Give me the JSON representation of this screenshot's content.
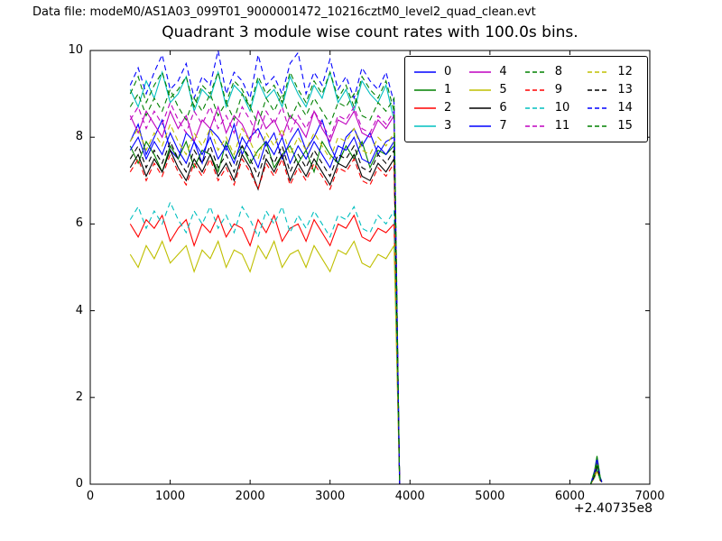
{
  "header": {
    "data_file_label": "Data file: modeM0/AS1A03_099T01_9000001472_10216cztM0_level2_quad_clean.evt"
  },
  "colors": {
    "background": "#ffffff",
    "axes": "#000000",
    "text": "#000000"
  },
  "chart_data": {
    "type": "line",
    "title": "Quadrant 3 module wise count rates with 100.0s bins.",
    "xlabel": "",
    "ylabel": "",
    "xlim": [
      0,
      7000
    ],
    "ylim": [
      0,
      10
    ],
    "x_ticks": [
      0,
      1000,
      2000,
      3000,
      4000,
      5000,
      6000,
      7000
    ],
    "y_ticks": [
      0,
      2,
      4,
      6,
      8,
      10
    ],
    "x_offset_text": "+2.40735e8",
    "grid": false,
    "legend_position": "upper right",
    "legend_columns": 4,
    "bin_seconds": 100.0,
    "x_start": 500,
    "x_step": 100,
    "drop_x": 3870,
    "flat_zero_until": 6260,
    "blip_x": [
      6310,
      6340,
      6380,
      6400
    ],
    "series": [
      {
        "name": "0",
        "color": "#0000ff",
        "dash": false,
        "blip_peak": 0.45,
        "values": [
          7.9,
          8.3,
          7.6,
          8.0,
          8.4,
          7.7,
          7.5,
          8.1,
          7.9,
          7.4,
          8.2,
          8.0,
          7.7,
          8.3,
          7.6,
          8.0,
          8.2,
          7.8,
          8.1,
          7.5,
          7.9,
          8.2,
          7.7,
          8.0,
          8.4,
          7.8,
          7.4,
          8.0,
          8.2,
          7.8,
          8.1,
          7.6,
          7.9,
          8.0
        ]
      },
      {
        "name": "1",
        "color": "#008000",
        "dash": false,
        "blip_peak": 0.65,
        "values": [
          7.8,
          7.4,
          7.9,
          7.6,
          7.2,
          7.8,
          7.5,
          7.9,
          7.3,
          7.7,
          7.6,
          7.2,
          7.9,
          7.5,
          7.8,
          7.4,
          7.7,
          7.9,
          7.3,
          7.6,
          7.8,
          7.4,
          7.7,
          7.2,
          7.9,
          7.6,
          7.4,
          7.8,
          7.5,
          7.9,
          7.3,
          7.7,
          7.6,
          7.8
        ]
      },
      {
        "name": "2",
        "color": "#ff0000",
        "dash": false,
        "blip_peak": 0.35,
        "values": [
          6.0,
          5.7,
          6.1,
          5.9,
          6.2,
          5.6,
          5.9,
          6.1,
          5.5,
          6.0,
          5.8,
          6.2,
          5.7,
          6.0,
          5.9,
          5.5,
          6.1,
          5.8,
          6.2,
          5.6,
          5.9,
          6.0,
          5.6,
          6.1,
          5.8,
          5.5,
          6.0,
          5.9,
          6.2,
          5.7,
          5.6,
          5.9,
          5.8,
          6.0
        ]
      },
      {
        "name": "3",
        "color": "#00bfbf",
        "dash": false,
        "blip_peak": 0.5,
        "values": [
          9.1,
          8.7,
          9.3,
          8.9,
          9.5,
          8.8,
          9.0,
          9.4,
          8.6,
          9.1,
          8.9,
          9.5,
          8.7,
          9.2,
          9.0,
          8.6,
          9.3,
          8.9,
          9.1,
          8.7,
          9.4,
          9.0,
          8.7,
          9.2,
          8.9,
          9.5,
          8.8,
          9.1,
          8.6,
          9.3,
          9.0,
          8.8,
          9.2,
          8.4
        ]
      },
      {
        "name": "4",
        "color": "#bf00bf",
        "dash": false,
        "blip_peak": 0.4,
        "values": [
          8.5,
          8.1,
          8.6,
          8.3,
          8.0,
          8.6,
          8.2,
          8.5,
          7.9,
          8.4,
          8.2,
          8.7,
          8.1,
          8.5,
          8.3,
          7.9,
          8.6,
          8.2,
          8.4,
          8.0,
          8.5,
          8.3,
          8.0,
          8.6,
          8.2,
          7.9,
          8.4,
          8.3,
          8.6,
          8.1,
          8.0,
          8.4,
          8.2,
          8.5
        ]
      },
      {
        "name": "5",
        "color": "#bfbf00",
        "dash": false,
        "blip_peak": 0.3,
        "values": [
          5.3,
          5.0,
          5.5,
          5.2,
          5.6,
          5.1,
          5.3,
          5.5,
          4.9,
          5.4,
          5.2,
          5.6,
          5.0,
          5.4,
          5.3,
          4.9,
          5.5,
          5.2,
          5.6,
          5.0,
          5.3,
          5.4,
          5.0,
          5.5,
          5.2,
          4.9,
          5.4,
          5.3,
          5.6,
          5.1,
          5.0,
          5.3,
          5.2,
          5.5
        ]
      },
      {
        "name": "6",
        "color": "#000000",
        "dash": false,
        "blip_peak": 0.45,
        "values": [
          7.3,
          7.6,
          7.1,
          7.5,
          7.2,
          7.7,
          7.3,
          7.0,
          7.5,
          7.2,
          7.6,
          7.1,
          7.4,
          7.0,
          7.6,
          7.3,
          6.8,
          7.5,
          7.2,
          7.6,
          7.0,
          7.4,
          7.1,
          7.5,
          7.2,
          6.9,
          7.4,
          7.3,
          7.6,
          7.1,
          7.0,
          7.4,
          7.2,
          7.5
        ]
      },
      {
        "name": "7",
        "color": "#0000ff",
        "dash": false,
        "blip_peak": 0.4,
        "values": [
          7.7,
          8.0,
          7.5,
          7.9,
          7.6,
          8.1,
          7.7,
          7.4,
          7.9,
          7.6,
          8.0,
          7.5,
          7.8,
          7.4,
          8.0,
          7.7,
          7.3,
          7.9,
          7.6,
          8.0,
          7.4,
          7.8,
          7.5,
          7.9,
          7.6,
          7.3,
          7.8,
          7.7,
          8.0,
          7.5,
          7.4,
          7.8,
          7.6,
          7.9
        ]
      },
      {
        "name": "8",
        "color": "#008000",
        "dash": true,
        "blip_peak": 0.55,
        "values": [
          9.0,
          9.4,
          8.8,
          9.2,
          9.5,
          8.9,
          9.1,
          9.4,
          8.7,
          9.2,
          9.0,
          9.5,
          8.8,
          9.3,
          9.1,
          8.7,
          9.4,
          9.0,
          9.2,
          8.8,
          9.5,
          9.1,
          8.8,
          9.3,
          9.0,
          9.5,
          8.9,
          9.2,
          8.7,
          9.4,
          9.1,
          8.9,
          9.3,
          8.6
        ]
      },
      {
        "name": "9",
        "color": "#ff0000",
        "dash": true,
        "blip_peak": 0.4,
        "values": [
          7.2,
          7.5,
          7.0,
          7.4,
          7.1,
          7.6,
          7.2,
          6.9,
          7.4,
          7.1,
          7.5,
          7.0,
          7.3,
          6.9,
          7.5,
          7.2,
          6.8,
          7.4,
          7.1,
          7.5,
          6.9,
          7.3,
          7.0,
          7.4,
          7.1,
          6.8,
          7.3,
          7.2,
          7.5,
          7.0,
          6.9,
          7.3,
          7.1,
          7.4
        ]
      },
      {
        "name": "10",
        "color": "#00bfbf",
        "dash": true,
        "blip_peak": 0.35,
        "values": [
          6.1,
          6.4,
          5.9,
          6.3,
          6.0,
          6.5,
          6.1,
          5.8,
          6.3,
          6.0,
          6.4,
          5.9,
          6.2,
          5.8,
          6.4,
          6.1,
          5.7,
          6.3,
          6.0,
          6.4,
          5.8,
          6.2,
          5.9,
          6.3,
          6.0,
          5.7,
          6.2,
          6.1,
          6.4,
          5.9,
          5.8,
          6.2,
          6.0,
          6.3
        ]
      },
      {
        "name": "11",
        "color": "#bf00bf",
        "dash": true,
        "blip_peak": 0.5,
        "values": [
          8.4,
          8.7,
          8.2,
          8.6,
          8.3,
          8.8,
          8.4,
          8.1,
          8.6,
          8.3,
          8.7,
          8.2,
          8.5,
          8.1,
          8.7,
          8.4,
          8.0,
          8.6,
          8.3,
          8.7,
          8.1,
          8.5,
          8.2,
          8.6,
          8.3,
          8.0,
          8.5,
          8.4,
          8.7,
          8.2,
          8.1,
          8.5,
          8.3,
          8.6
        ]
      },
      {
        "name": "12",
        "color": "#bfbf00",
        "dash": true,
        "blip_peak": 0.45,
        "values": [
          7.9,
          8.2,
          7.7,
          8.1,
          7.8,
          8.3,
          7.9,
          7.6,
          8.1,
          7.8,
          8.2,
          7.7,
          8.0,
          7.6,
          8.2,
          7.9,
          7.5,
          8.1,
          7.8,
          8.2,
          7.6,
          8.0,
          7.7,
          8.1,
          7.8,
          7.5,
          8.0,
          7.9,
          8.2,
          7.7,
          7.6,
          8.0,
          7.8,
          8.1
        ]
      },
      {
        "name": "13",
        "color": "#000000",
        "dash": true,
        "blip_peak": 0.4,
        "values": [
          7.5,
          7.8,
          7.3,
          7.7,
          7.4,
          7.9,
          7.5,
          7.2,
          7.7,
          7.4,
          7.8,
          7.3,
          7.6,
          7.2,
          7.8,
          7.5,
          7.1,
          7.7,
          7.4,
          7.8,
          7.2,
          7.6,
          7.3,
          7.7,
          7.4,
          7.1,
          7.6,
          7.5,
          7.8,
          7.3,
          7.2,
          7.6,
          7.4,
          7.7
        ]
      },
      {
        "name": "14",
        "color": "#0000ff",
        "dash": true,
        "blip_peak": 0.6,
        "values": [
          9.2,
          9.6,
          9.0,
          9.5,
          9.9,
          9.1,
          9.3,
          9.7,
          8.9,
          9.4,
          9.2,
          10.0,
          9.0,
          9.5,
          9.3,
          8.9,
          9.9,
          9.2,
          9.4,
          9.0,
          9.7,
          9.95,
          9.0,
          9.5,
          9.2,
          9.8,
          9.1,
          9.4,
          8.9,
          9.6,
          9.3,
          9.1,
          9.5,
          8.8
        ]
      },
      {
        "name": "15",
        "color": "#008000",
        "dash": true,
        "blip_peak": 0.5,
        "values": [
          8.7,
          9.0,
          8.5,
          8.9,
          8.6,
          9.1,
          8.7,
          8.4,
          8.9,
          8.6,
          9.0,
          8.5,
          8.8,
          8.4,
          9.0,
          8.7,
          8.3,
          8.9,
          8.6,
          9.0,
          8.4,
          8.8,
          8.5,
          8.9,
          8.6,
          8.3,
          8.8,
          8.7,
          9.0,
          8.5,
          8.4,
          8.8,
          8.6,
          8.9
        ]
      }
    ]
  }
}
